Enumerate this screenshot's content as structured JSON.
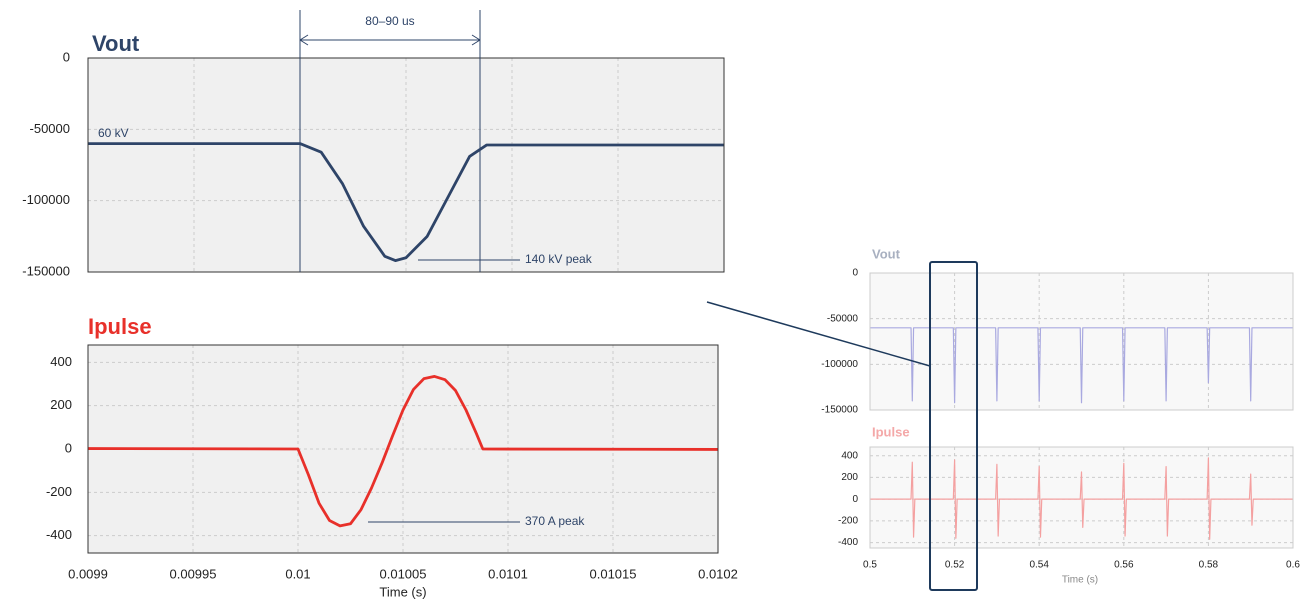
{
  "chart_data": [
    {
      "type": "line",
      "title": "Vout",
      "color": "#2e4468",
      "grid": true,
      "ylim": [
        -150000,
        0
      ],
      "yticks": [
        0,
        -50000,
        -100000,
        -150000
      ],
      "xlim": [
        0.0099,
        0.0102
      ],
      "x": [
        0.0099,
        0.01,
        0.01001,
        0.01002,
        0.01003,
        0.01004,
        0.010045,
        0.01005,
        0.01006,
        0.01007,
        0.01008,
        0.010088,
        0.0102
      ],
      "values": [
        -60000,
        -60000,
        -66000,
        -88000,
        -118000,
        -139000,
        -142000,
        -140000,
        -125000,
        -97000,
        -69000,
        -61000,
        -61000
      ],
      "annotations": [
        "60 kV",
        "140 kV peak",
        "80–90 us"
      ]
    },
    {
      "type": "line",
      "title": "Ipulse",
      "color": "#e8302a",
      "grid": true,
      "ylim": [
        -480,
        480
      ],
      "yticks": [
        400,
        200,
        0,
        -200,
        -400
      ],
      "xlim": [
        0.0099,
        0.0102
      ],
      "xticks": [
        0.0099,
        0.00995,
        0.01,
        0.01005,
        0.0101,
        0.01015,
        0.0102
      ],
      "x_label": "Time (s)",
      "x": [
        0.0099,
        0.01,
        0.010005,
        0.01001,
        0.010015,
        0.01002,
        0.010025,
        0.01003,
        0.010035,
        0.01004,
        0.010045,
        0.01005,
        0.010055,
        0.01006,
        0.010065,
        0.01007,
        0.010075,
        0.01008,
        0.010085,
        0.010088,
        0.0102
      ],
      "values": [
        2,
        0,
        -120,
        -250,
        -330,
        -355,
        -345,
        -280,
        -180,
        -65,
        60,
        180,
        275,
        325,
        335,
        320,
        270,
        180,
        70,
        0,
        -2
      ],
      "annotations": [
        "370 A peak"
      ]
    },
    {
      "type": "line",
      "title": "Vout",
      "color": "#a9a9e0",
      "grid": true,
      "ylim": [
        -150000,
        0
      ],
      "yticks": [
        0,
        -50000,
        -100000,
        -150000
      ],
      "xlim": [
        0.5,
        0.6
      ],
      "x": [
        0.5,
        0.5097,
        0.51,
        0.5103,
        0.5197,
        0.52,
        0.5203,
        0.5297,
        0.53,
        0.5303,
        0.5397,
        0.54,
        0.5403,
        0.5497,
        0.55,
        0.5503,
        0.5597,
        0.56,
        0.5603,
        0.5697,
        0.57,
        0.5703,
        0.5797,
        0.58,
        0.5803,
        0.5897,
        0.59,
        0.5903,
        0.6
      ],
      "values": [
        -60000,
        -60000,
        -140000,
        -60000,
        -60000,
        -142000,
        -60000,
        -60000,
        -140000,
        -60000,
        -60000,
        -140000,
        -60000,
        -60000,
        -142000,
        -60000,
        -60000,
        -140000,
        -60000,
        -60000,
        -140000,
        -60000,
        -60000,
        -120000,
        -60000,
        -60000,
        -140000,
        -60000,
        -60000
      ]
    },
    {
      "type": "line",
      "title": "Ipulse",
      "color": "#f4a0a0",
      "grid": true,
      "ylim": [
        -450,
        480
      ],
      "yticks": [
        400,
        200,
        0,
        -200,
        -400
      ],
      "xlim": [
        0.5,
        0.6
      ],
      "xticks": [
        0.5,
        0.52,
        0.54,
        0.56,
        0.58,
        0.6
      ],
      "x_label": "Time (s)",
      "x": [
        0.5,
        0.5097,
        0.51,
        0.5103,
        0.5106,
        0.5197,
        0.52,
        0.5203,
        0.5206,
        0.5297,
        0.53,
        0.5303,
        0.5306,
        0.5397,
        0.54,
        0.5403,
        0.5406,
        0.5497,
        0.55,
        0.5503,
        0.5506,
        0.5597,
        0.56,
        0.5603,
        0.5606,
        0.5697,
        0.57,
        0.5703,
        0.5706,
        0.5797,
        0.58,
        0.5803,
        0.5806,
        0.5897,
        0.59,
        0.5903,
        0.5906,
        0.6
      ],
      "values": [
        0,
        0,
        340,
        -350,
        0,
        0,
        360,
        -360,
        0,
        0,
        320,
        -340,
        0,
        0,
        300,
        -350,
        0,
        0,
        250,
        -260,
        0,
        0,
        330,
        -340,
        0,
        0,
        300,
        -340,
        0,
        0,
        380,
        -370,
        0,
        0,
        230,
        -240,
        0,
        0
      ]
    }
  ]
}
